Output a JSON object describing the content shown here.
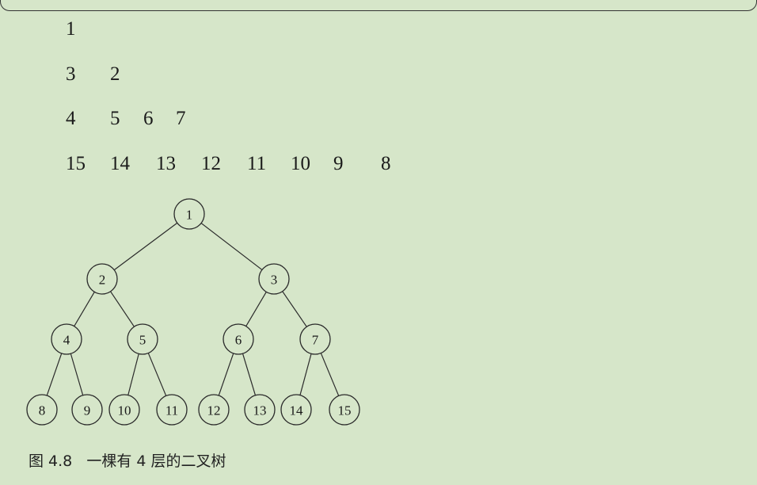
{
  "rows": [
    [
      "1"
    ],
    [
      "3",
      "2"
    ],
    [
      "4",
      "5",
      "6",
      "7"
    ],
    [
      "15",
      "14",
      "13",
      "12",
      "11",
      "10",
      "9",
      "8"
    ]
  ],
  "tree_nodes": [
    {
      "id": "1",
      "label": "1"
    },
    {
      "id": "2",
      "label": "2",
      "parent": "1"
    },
    {
      "id": "3",
      "label": "3",
      "parent": "1"
    },
    {
      "id": "4",
      "label": "4",
      "parent": "2"
    },
    {
      "id": "5",
      "label": "5",
      "parent": "2"
    },
    {
      "id": "6",
      "label": "6",
      "parent": "3"
    },
    {
      "id": "7",
      "label": "7",
      "parent": "3"
    },
    {
      "id": "8",
      "label": "8",
      "parent": "4"
    },
    {
      "id": "9",
      "label": "9",
      "parent": "4"
    },
    {
      "id": "10",
      "label": "10",
      "parent": "5"
    },
    {
      "id": "11",
      "label": "11",
      "parent": "5"
    },
    {
      "id": "12",
      "label": "12",
      "parent": "6"
    },
    {
      "id": "13",
      "label": "13",
      "parent": "6"
    },
    {
      "id": "14",
      "label": "14",
      "parent": "7"
    },
    {
      "id": "15",
      "label": "15",
      "parent": "7"
    }
  ],
  "caption": "图 4.8   一棵有 4 层的二叉树"
}
